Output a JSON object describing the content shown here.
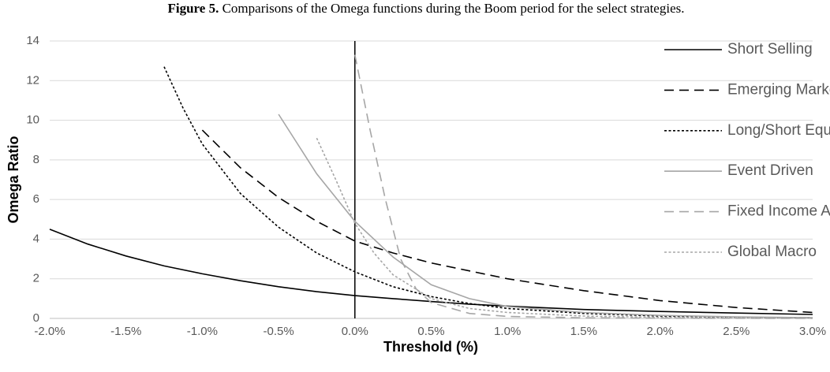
{
  "chart_data": {
    "type": "line",
    "figure_label": "Figure 5.",
    "title": "Comparisons of the Omega functions during the Boom period for the select strategies.",
    "x_label": "Threshold (%)",
    "y_label": "Omega Ratio",
    "xlim": [
      -2,
      3
    ],
    "ylim": [
      0,
      14
    ],
    "xticks": [
      {
        "value": -2,
        "label": "-2.0%"
      },
      {
        "value": -1.5,
        "label": "-1.5%"
      },
      {
        "value": -1,
        "label": "-1.0%"
      },
      {
        "value": -0.5,
        "label": "-0.5%"
      },
      {
        "value": 0,
        "label": "0.0%"
      },
      {
        "value": 0.5,
        "label": "0.5%"
      },
      {
        "value": 1,
        "label": "1.0%"
      },
      {
        "value": 1.5,
        "label": "1.5%"
      },
      {
        "value": 2,
        "label": "2.0%"
      },
      {
        "value": 2.5,
        "label": "2.5%"
      },
      {
        "value": 3,
        "label": "3.0%"
      }
    ],
    "yticks": [
      0,
      2,
      4,
      6,
      8,
      10,
      12,
      14
    ],
    "grid": true,
    "legend": "right",
    "series": [
      {
        "name": "Short Selling",
        "color": "#000000",
        "style": "solid",
        "x": [
          -2,
          -1.75,
          -1.5,
          -1.25,
          -1,
          -0.75,
          -0.5,
          -0.25,
          0,
          0.25,
          0.5,
          0.75,
          1,
          1.5,
          2,
          2.5,
          3
        ],
        "values": [
          4.5,
          3.75,
          3.15,
          2.65,
          2.25,
          1.9,
          1.6,
          1.35,
          1.15,
          1.0,
          0.85,
          0.72,
          0.62,
          0.45,
          0.35,
          0.27,
          0.2
        ]
      },
      {
        "name": "Emerging Markets",
        "color": "#000000",
        "style": "dashed",
        "x": [
          -1,
          -0.75,
          -0.5,
          -0.25,
          0,
          0.25,
          0.5,
          0.75,
          1,
          1.5,
          2,
          2.5,
          3
        ],
        "values": [
          9.5,
          7.6,
          6.1,
          4.9,
          3.9,
          3.3,
          2.8,
          2.4,
          2.0,
          1.4,
          0.9,
          0.55,
          0.3
        ]
      },
      {
        "name": "Long/Short Equity",
        "color": "#000000",
        "style": "dotted",
        "x": [
          -1.25,
          -1.125,
          -1,
          -0.75,
          -0.5,
          -0.25,
          0,
          0.25,
          0.5,
          0.75,
          1,
          1.5,
          2,
          2.5,
          3
        ],
        "values": [
          12.7,
          10.6,
          8.8,
          6.3,
          4.6,
          3.3,
          2.35,
          1.6,
          1.1,
          0.75,
          0.5,
          0.25,
          0.12,
          0.06,
          0.03
        ]
      },
      {
        "name": "Event Driven",
        "color": "#a6a6a6",
        "style": "solid",
        "x": [
          -0.5,
          -0.25,
          0,
          0.25,
          0.5,
          0.75,
          1,
          1.5,
          2,
          2.5,
          3
        ],
        "values": [
          10.3,
          7.3,
          4.9,
          3.1,
          1.7,
          1.0,
          0.6,
          0.3,
          0.15,
          0.08,
          0.04
        ]
      },
      {
        "name": "Fixed Income Arbitrage",
        "color": "#a6a6a6",
        "style": "dashed",
        "x": [
          0,
          0.1,
          0.2,
          0.3,
          0.4,
          0.5,
          0.75,
          1,
          1.5,
          2,
          3
        ],
        "values": [
          13.3,
          9.5,
          6.0,
          3.0,
          1.5,
          0.8,
          0.25,
          0.1,
          0.03,
          0.01,
          0
        ]
      },
      {
        "name": "Global Macro",
        "color": "#a6a6a6",
        "style": "dotted",
        "x": [
          -0.25,
          -0.125,
          0,
          0.125,
          0.25,
          0.5,
          0.75,
          1,
          1.5,
          2,
          3
        ],
        "values": [
          9.1,
          7.0,
          4.8,
          3.3,
          2.2,
          1.0,
          0.5,
          0.3,
          0.12,
          0.05,
          0.01
        ]
      }
    ]
  }
}
